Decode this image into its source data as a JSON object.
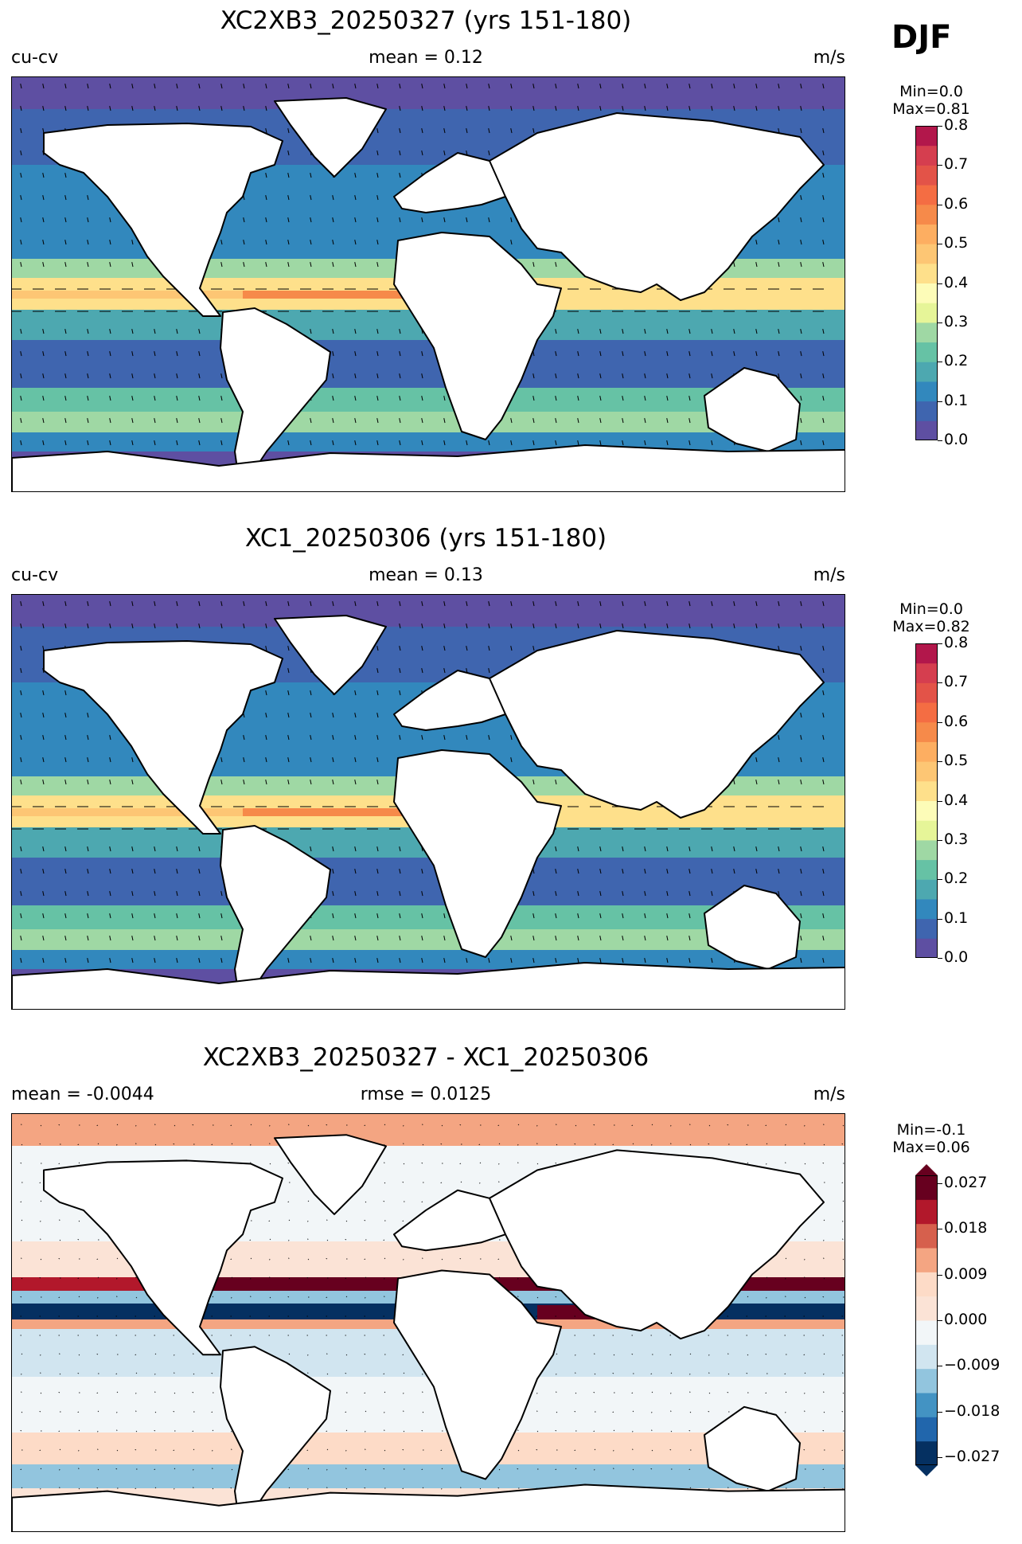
{
  "season": "DJF",
  "units": "m/s",
  "panels": [
    {
      "title": "XC2XB3_20250327 (yrs 151-180)",
      "left_label": "cu-cv",
      "center_label": "mean = 0.12",
      "right_label": "m/s",
      "min_label": "Min=0.0",
      "max_label": "Max=0.81",
      "colormap": "spectral_r",
      "levels": [
        0.0,
        0.05,
        0.1,
        0.15,
        0.2,
        0.25,
        0.3,
        0.35,
        0.4,
        0.45,
        0.5,
        0.55,
        0.6,
        0.65,
        0.7,
        0.75,
        0.8
      ],
      "ticks": [
        "0.8",
        "0.7",
        "0.6",
        "0.5",
        "0.4",
        "0.3",
        "0.2",
        "0.1",
        "0.0"
      ]
    },
    {
      "title": "XC1_20250306 (yrs 151-180)",
      "left_label": "cu-cv",
      "center_label": "mean = 0.13",
      "right_label": "m/s",
      "min_label": "Min=0.0",
      "max_label": "Max=0.82",
      "colormap": "spectral_r",
      "levels": [
        0.0,
        0.05,
        0.1,
        0.15,
        0.2,
        0.25,
        0.3,
        0.35,
        0.4,
        0.45,
        0.5,
        0.55,
        0.6,
        0.65,
        0.7,
        0.75,
        0.8
      ],
      "ticks": [
        "0.8",
        "0.7",
        "0.6",
        "0.5",
        "0.4",
        "0.3",
        "0.2",
        "0.1",
        "0.0"
      ]
    },
    {
      "title": "XC2XB3_20250327 - XC1_20250306",
      "left_label": "mean = -0.0044",
      "center_label": "rmse = 0.0125",
      "right_label": "m/s",
      "min_label": "Min=-0.1",
      "max_label": "Max=0.06",
      "colormap": "rdbu_r",
      "levels": [
        -0.027,
        0.027
      ],
      "ticks": [
        "0.027",
        "0.018",
        "0.009",
        "0.000",
        "−0.009",
        "−0.018",
        "−0.027"
      ]
    }
  ],
  "colors": {
    "spectral": [
      "#5e4fa2",
      "#3f65af",
      "#3288bd",
      "#4da8b0",
      "#66c2a5",
      "#9fd8a4",
      "#e6f598",
      "#fdfcb8",
      "#fee08b",
      "#fdc674",
      "#fdae61",
      "#f68a4a",
      "#f46d43",
      "#e35348",
      "#d53e4f",
      "#b2174b",
      "#9e0142"
    ],
    "diverging": [
      "#053061",
      "#2166ac",
      "#4393c3",
      "#92c5de",
      "#d1e5f0",
      "#f2f6f8",
      "#fbe3d6",
      "#fddbc7",
      "#f4a582",
      "#d6604d",
      "#b2182b",
      "#67001f"
    ],
    "land": "#ffffff",
    "coast": "#000000"
  }
}
